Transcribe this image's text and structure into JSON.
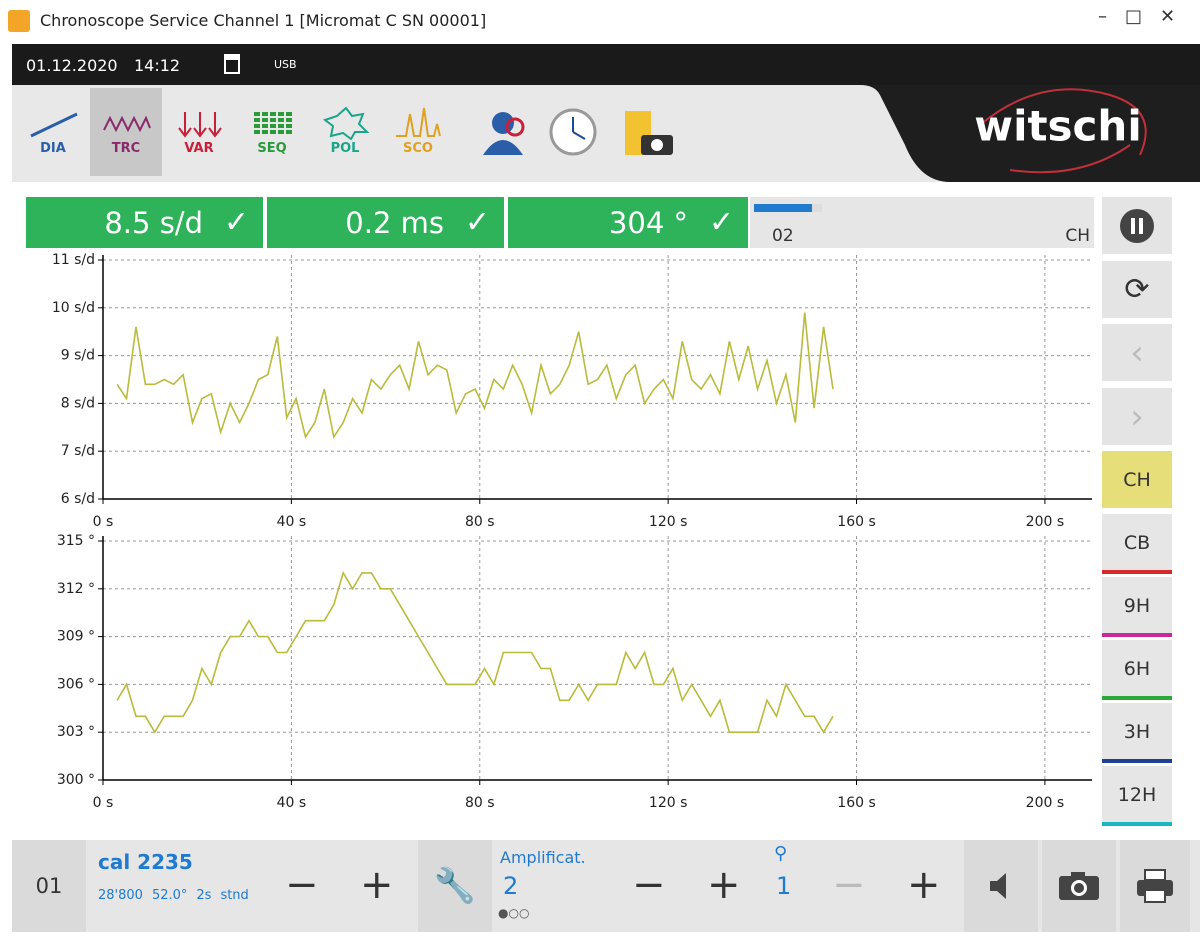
{
  "window": {
    "title": "Chronoscope Service Channel 1 [Micromat C SN 00001]"
  },
  "status_bar": {
    "date": "01.12.2020",
    "time": "14:12",
    "port": "USB"
  },
  "toolbar": {
    "tools": [
      "DIA",
      "TRC",
      "VAR",
      "SEQ",
      "POL",
      "SCO"
    ],
    "brand": "witschi"
  },
  "readouts": {
    "rate": "8.5 s/d",
    "beat_error": "0.2 ms",
    "amplitude": "304 °",
    "progress_label": "02",
    "mode": "CH"
  },
  "positions": [
    "CH",
    "CB",
    "9H",
    "6H",
    "3H",
    "12H"
  ],
  "bottom_bar": {
    "channel": "01",
    "calibre": "cal 2235",
    "frequency": "28'800",
    "lift_angle": "52.0°",
    "interval": "2s",
    "mode": "stnd",
    "amplification_label": "Amplificat.",
    "amplification": "2",
    "zoom": "1"
  },
  "chart_data": [
    {
      "type": "line",
      "x": [
        3,
        5,
        7,
        9,
        11,
        13,
        15,
        17,
        19,
        21,
        23,
        25,
        27,
        29,
        31,
        33,
        35,
        37,
        39,
        41,
        43,
        45,
        47,
        49,
        51,
        53,
        55,
        57,
        59,
        61,
        63,
        65,
        67,
        69,
        71,
        73,
        75,
        77,
        79,
        81,
        83,
        85,
        87,
        89,
        91,
        93,
        95,
        97,
        99,
        101,
        103,
        105,
        107,
        109,
        111,
        113,
        115,
        117,
        119,
        121,
        123,
        125,
        127,
        129,
        131,
        133,
        135,
        137,
        139,
        141,
        143,
        145,
        147,
        149,
        151,
        153,
        155
      ],
      "series": [
        {
          "color": "#b9bb3c",
          "values": [
            8.4,
            8.1,
            9.6,
            8.4,
            8.4,
            8.5,
            8.4,
            8.6,
            7.6,
            8.1,
            8.2,
            7.4,
            8.0,
            7.6,
            8.0,
            8.5,
            8.6,
            9.4,
            7.7,
            8.1,
            7.3,
            7.6,
            8.3,
            7.3,
            7.6,
            8.1,
            7.8,
            8.5,
            8.3,
            8.6,
            8.8,
            8.3,
            9.3,
            8.6,
            8.8,
            8.7,
            7.8,
            8.2,
            8.3,
            7.9,
            8.5,
            8.3,
            8.8,
            8.4,
            7.8,
            8.8,
            8.2,
            8.4,
            8.8,
            9.5,
            8.4,
            8.5,
            8.8,
            8.1,
            8.6,
            8.8,
            8.0,
            8.3,
            8.5,
            8.1,
            9.3,
            8.5,
            8.3,
            8.6,
            8.2,
            9.3,
            8.5,
            9.2,
            8.3,
            8.9,
            8.0,
            8.6,
            7.6,
            9.9,
            7.9,
            9.6,
            8.3
          ]
        }
      ],
      "xlim": [
        0,
        210
      ],
      "xticks": [
        {
          "value": 0,
          "label": "0 s"
        },
        {
          "value": 40,
          "label": "40 s"
        },
        {
          "value": 80,
          "label": "80 s"
        },
        {
          "value": 120,
          "label": "120 s"
        },
        {
          "value": 160,
          "label": "160 s"
        },
        {
          "value": 200,
          "label": "200 s"
        }
      ],
      "ylim": [
        6,
        11
      ],
      "yticks": [
        {
          "value": 6,
          "label": "6 s/d"
        },
        {
          "value": 7,
          "label": "7 s/d"
        },
        {
          "value": 8,
          "label": "8 s/d"
        },
        {
          "value": 9,
          "label": "9 s/d"
        },
        {
          "value": 10,
          "label": "10 s/d"
        },
        {
          "value": 11,
          "label": "11 s/d"
        }
      ],
      "grid": true
    },
    {
      "type": "line",
      "x": [
        3,
        5,
        7,
        9,
        11,
        13,
        15,
        17,
        19,
        21,
        23,
        25,
        27,
        29,
        31,
        33,
        35,
        37,
        39,
        41,
        43,
        45,
        47,
        49,
        51,
        53,
        55,
        57,
        59,
        61,
        63,
        65,
        67,
        69,
        71,
        73,
        75,
        77,
        79,
        81,
        83,
        85,
        87,
        89,
        91,
        93,
        95,
        97,
        99,
        101,
        103,
        105,
        107,
        109,
        111,
        113,
        115,
        117,
        119,
        121,
        123,
        125,
        127,
        129,
        131,
        133,
        135,
        137,
        139,
        141,
        143,
        145,
        147,
        149,
        151,
        153,
        155
      ],
      "series": [
        {
          "color": "#b9bb3c",
          "values": [
            305,
            306,
            304,
            304,
            303,
            304,
            304,
            304,
            305,
            307,
            306,
            308,
            309,
            309,
            310,
            309,
            309,
            308,
            308,
            309,
            310,
            310,
            310,
            311,
            313,
            312,
            313,
            313,
            312,
            312,
            311,
            310,
            309,
            308,
            307,
            306,
            306,
            306,
            306,
            307,
            306,
            308,
            308,
            308,
            308,
            307,
            307,
            305,
            305,
            306,
            305,
            306,
            306,
            306,
            308,
            307,
            308,
            306,
            306,
            307,
            305,
            306,
            305,
            304,
            305,
            303,
            303,
            303,
            303,
            305,
            304,
            306,
            305,
            304,
            304,
            303,
            304
          ]
        }
      ],
      "xlim": [
        0,
        210
      ],
      "xticks": [
        {
          "value": 0,
          "label": "0 s"
        },
        {
          "value": 40,
          "label": "40 s"
        },
        {
          "value": 80,
          "label": "80 s"
        },
        {
          "value": 120,
          "label": "120 s"
        },
        {
          "value": 160,
          "label": "160 s"
        },
        {
          "value": 200,
          "label": "200 s"
        }
      ],
      "ylim": [
        300,
        315
      ],
      "yticks": [
        {
          "value": 300,
          "label": "300 °"
        },
        {
          "value": 303,
          "label": "303 °"
        },
        {
          "value": 306,
          "label": "306 °"
        },
        {
          "value": 309,
          "label": "309 °"
        },
        {
          "value": 312,
          "label": "312 °"
        },
        {
          "value": 315,
          "label": "315 °"
        }
      ],
      "grid": true
    }
  ]
}
